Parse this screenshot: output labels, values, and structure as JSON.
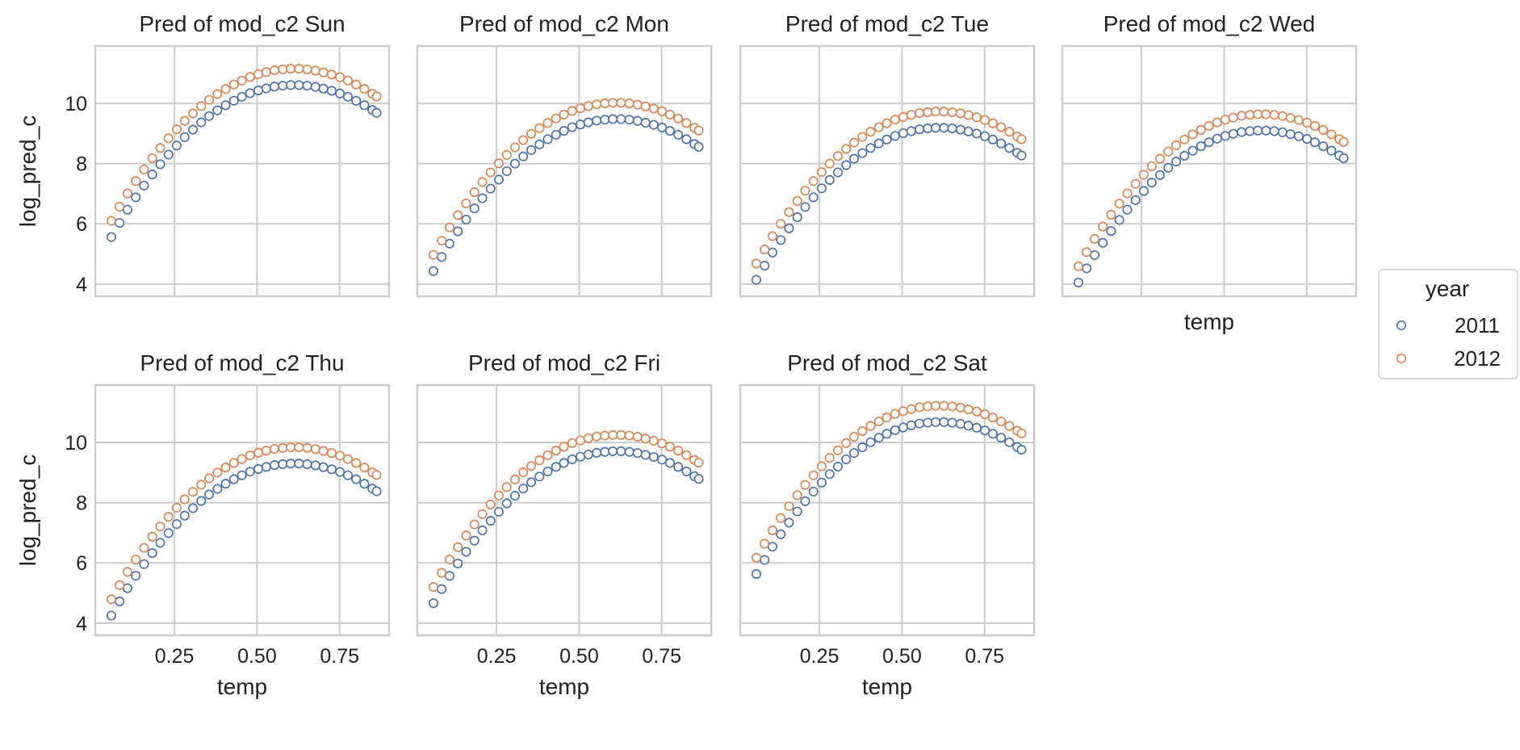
{
  "figure": {
    "legend": {
      "title": "year",
      "entries": [
        {
          "label": "2011",
          "color": "#4c72b0"
        },
        {
          "label": "2012",
          "color": "#dd8452"
        }
      ]
    }
  },
  "chart_data": {
    "type": "scatter",
    "layout": "facet grid, 2 rows x 4 columns, shared x and y axes",
    "grid": true,
    "legend_position": "right",
    "xlabel": "temp",
    "ylabel": "log_pred_c",
    "xlim": [
      0.02,
      0.89
    ],
    "ylim": [
      3.7,
      11.8
    ],
    "xticks": [
      0.25,
      0.5,
      0.75
    ],
    "xtick_labels": [
      "0.25",
      "0.50",
      "0.75"
    ],
    "yticks": [
      4,
      6,
      8,
      10
    ],
    "ytick_labels": [
      "4",
      "6",
      "8",
      "10"
    ],
    "x": [
      0.059,
      0.084,
      0.108,
      0.133,
      0.158,
      0.183,
      0.207,
      0.232,
      0.257,
      0.281,
      0.306,
      0.331,
      0.355,
      0.38,
      0.405,
      0.43,
      0.454,
      0.479,
      0.504,
      0.528,
      0.553,
      0.578,
      0.602,
      0.627,
      0.652,
      0.677,
      0.701,
      0.726,
      0.751,
      0.775,
      0.8,
      0.825,
      0.849,
      0.862
    ],
    "panels": [
      {
        "title": "Pred of mod_c2 Sun",
        "series": [
          {
            "name": "2011",
            "values": [
              5.56,
              6.03,
              6.47,
              6.88,
              7.27,
              7.64,
              7.98,
              8.3,
              8.6,
              8.88,
              9.13,
              9.37,
              9.58,
              9.77,
              9.94,
              10.09,
              10.22,
              10.34,
              10.43,
              10.5,
              10.56,
              10.59,
              10.61,
              10.61,
              10.59,
              10.55,
              10.49,
              10.42,
              10.33,
              10.22,
              10.09,
              9.94,
              9.78,
              9.69
            ]
          },
          {
            "name": "2012",
            "values": [
              6.1,
              6.57,
              7.01,
              7.42,
              7.81,
              8.18,
              8.52,
              8.84,
              9.14,
              9.42,
              9.67,
              9.91,
              10.12,
              10.31,
              10.48,
              10.63,
              10.76,
              10.88,
              10.97,
              11.04,
              11.1,
              11.13,
              11.15,
              11.15,
              11.13,
              11.09,
              11.03,
              10.96,
              10.87,
              10.76,
              10.63,
              10.48,
              10.32,
              10.23
            ]
          }
        ]
      },
      {
        "title": "Pred of mod_c2 Mon",
        "series": [
          {
            "name": "2011",
            "values": [
              4.43,
              4.9,
              5.34,
              5.75,
              6.14,
              6.51,
              6.85,
              7.17,
              7.47,
              7.75,
              8.0,
              8.24,
              8.45,
              8.64,
              8.81,
              8.96,
              9.09,
              9.21,
              9.3,
              9.37,
              9.43,
              9.46,
              9.48,
              9.48,
              9.46,
              9.42,
              9.36,
              9.29,
              9.2,
              9.09,
              8.96,
              8.81,
              8.65,
              8.56
            ]
          },
          {
            "name": "2012",
            "values": [
              4.97,
              5.44,
              5.88,
              6.29,
              6.68,
              7.05,
              7.39,
              7.71,
              8.01,
              8.29,
              8.54,
              8.78,
              8.99,
              9.18,
              9.35,
              9.5,
              9.63,
              9.75,
              9.84,
              9.91,
              9.97,
              10.0,
              10.02,
              10.02,
              10.0,
              9.96,
              9.9,
              9.83,
              9.74,
              9.63,
              9.5,
              9.35,
              9.19,
              9.1
            ]
          }
        ]
      },
      {
        "title": "Pred of mod_c2 Tue",
        "series": [
          {
            "name": "2011",
            "values": [
              4.14,
              4.61,
              5.05,
              5.46,
              5.85,
              6.22,
              6.56,
              6.88,
              7.18,
              7.46,
              7.71,
              7.95,
              8.16,
              8.35,
              8.52,
              8.67,
              8.8,
              8.92,
              9.01,
              9.08,
              9.14,
              9.17,
              9.19,
              9.19,
              9.17,
              9.13,
              9.07,
              9.0,
              8.91,
              8.8,
              8.67,
              8.52,
              8.36,
              8.27
            ]
          },
          {
            "name": "2012",
            "values": [
              4.68,
              5.15,
              5.59,
              6.0,
              6.39,
              6.76,
              7.1,
              7.42,
              7.72,
              8.0,
              8.25,
              8.49,
              8.7,
              8.89,
              9.06,
              9.21,
              9.34,
              9.46,
              9.55,
              9.62,
              9.68,
              9.71,
              9.73,
              9.73,
              9.71,
              9.67,
              9.61,
              9.54,
              9.45,
              9.34,
              9.21,
              9.06,
              8.9,
              8.81
            ]
          }
        ]
      },
      {
        "title": "Pred of mod_c2 Wed",
        "series": [
          {
            "name": "2011",
            "values": [
              4.05,
              4.52,
              4.96,
              5.37,
              5.76,
              6.13,
              6.47,
              6.79,
              7.09,
              7.37,
              7.62,
              7.86,
              8.07,
              8.26,
              8.43,
              8.58,
              8.71,
              8.83,
              8.92,
              8.99,
              9.05,
              9.08,
              9.1,
              9.1,
              9.08,
              9.04,
              8.98,
              8.91,
              8.82,
              8.71,
              8.58,
              8.43,
              8.27,
              8.18
            ]
          },
          {
            "name": "2012",
            "values": [
              4.59,
              5.06,
              5.5,
              5.91,
              6.3,
              6.67,
              7.01,
              7.33,
              7.63,
              7.91,
              8.16,
              8.4,
              8.61,
              8.8,
              8.97,
              9.12,
              9.25,
              9.37,
              9.46,
              9.53,
              9.59,
              9.62,
              9.64,
              9.64,
              9.62,
              9.58,
              9.52,
              9.45,
              9.36,
              9.25,
              9.12,
              8.97,
              8.81,
              8.72
            ]
          }
        ]
      },
      {
        "title": "Pred of mod_c2 Thu",
        "series": [
          {
            "name": "2011",
            "values": [
              4.25,
              4.72,
              5.16,
              5.57,
              5.96,
              6.33,
              6.67,
              6.99,
              7.29,
              7.57,
              7.82,
              8.06,
              8.27,
              8.46,
              8.63,
              8.78,
              8.91,
              9.03,
              9.12,
              9.19,
              9.25,
              9.28,
              9.3,
              9.3,
              9.28,
              9.24,
              9.18,
              9.11,
              9.02,
              8.91,
              8.78,
              8.63,
              8.47,
              8.38
            ]
          },
          {
            "name": "2012",
            "values": [
              4.79,
              5.26,
              5.7,
              6.11,
              6.5,
              6.87,
              7.21,
              7.53,
              7.83,
              8.11,
              8.36,
              8.6,
              8.81,
              9.0,
              9.17,
              9.32,
              9.45,
              9.57,
              9.66,
              9.73,
              9.79,
              9.82,
              9.84,
              9.84,
              9.82,
              9.78,
              9.72,
              9.65,
              9.56,
              9.45,
              9.32,
              9.17,
              9.01,
              8.92
            ]
          }
        ]
      },
      {
        "title": "Pred of mod_c2 Fri",
        "series": [
          {
            "name": "2011",
            "values": [
              4.66,
              5.13,
              5.57,
              5.98,
              6.37,
              6.74,
              7.08,
              7.4,
              7.7,
              7.98,
              8.23,
              8.47,
              8.68,
              8.87,
              9.04,
              9.19,
              9.32,
              9.44,
              9.53,
              9.6,
              9.66,
              9.69,
              9.71,
              9.71,
              9.69,
              9.65,
              9.59,
              9.52,
              9.43,
              9.32,
              9.19,
              9.04,
              8.88,
              8.79
            ]
          },
          {
            "name": "2012",
            "values": [
              5.2,
              5.67,
              6.11,
              6.52,
              6.91,
              7.28,
              7.62,
              7.94,
              8.24,
              8.52,
              8.77,
              9.01,
              9.22,
              9.41,
              9.58,
              9.73,
              9.86,
              9.98,
              10.07,
              10.14,
              10.2,
              10.23,
              10.25,
              10.25,
              10.23,
              10.19,
              10.13,
              10.06,
              9.97,
              9.86,
              9.73,
              9.58,
              9.42,
              9.33
            ]
          }
        ]
      },
      {
        "title": "Pred of mod_c2 Sat",
        "series": [
          {
            "name": "2011",
            "values": [
              5.63,
              6.1,
              6.54,
              6.95,
              7.34,
              7.71,
              8.05,
              8.37,
              8.67,
              8.95,
              9.2,
              9.44,
              9.65,
              9.84,
              10.01,
              10.16,
              10.29,
              10.41,
              10.5,
              10.57,
              10.63,
              10.66,
              10.68,
              10.68,
              10.66,
              10.62,
              10.56,
              10.49,
              10.4,
              10.29,
              10.16,
              10.01,
              9.85,
              9.76
            ]
          },
          {
            "name": "2012",
            "values": [
              6.17,
              6.64,
              7.08,
              7.49,
              7.88,
              8.25,
              8.59,
              8.91,
              9.21,
              9.49,
              9.74,
              9.98,
              10.19,
              10.38,
              10.55,
              10.7,
              10.83,
              10.95,
              11.04,
              11.11,
              11.17,
              11.2,
              11.22,
              11.22,
              11.2,
              11.16,
              11.1,
              11.03,
              10.94,
              10.83,
              10.7,
              10.55,
              10.39,
              10.3
            ]
          }
        ]
      }
    ]
  }
}
